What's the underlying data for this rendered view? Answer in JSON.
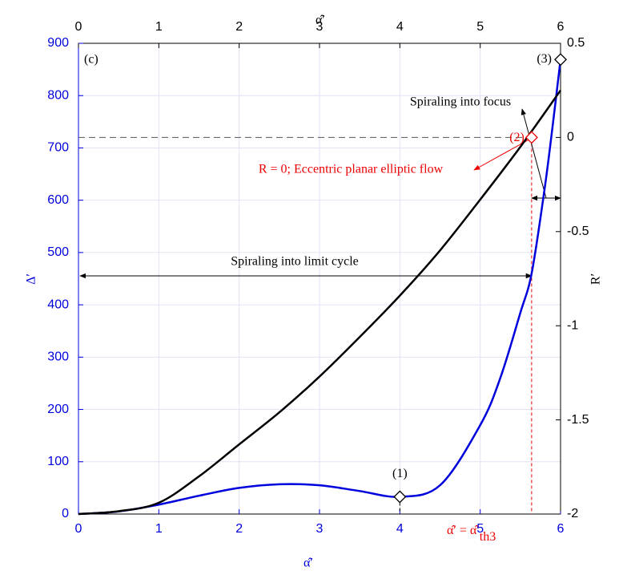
{
  "chart_data": {
    "type": "line",
    "xlabel": "α̂′",
    "x2label": "α̂′",
    "ylabel": "Δ′",
    "y2label": "R′",
    "panel_label": "(c)",
    "xlim": [
      0,
      6
    ],
    "xticks": [
      0,
      1,
      2,
      3,
      4,
      5,
      6
    ],
    "ylim": [
      0,
      900
    ],
    "yticks": [
      0,
      100,
      200,
      300,
      400,
      500,
      600,
      700,
      800,
      900
    ],
    "y2lim": [
      -2,
      0.5
    ],
    "y2ticks": [
      0.5,
      0,
      -0.5,
      -1,
      -1.5,
      -2
    ],
    "grid": true,
    "series": [
      {
        "color": "#0000dd",
        "x": [
          0,
          0.5,
          1,
          1.5,
          2,
          2.5,
          3,
          3.5,
          4,
          4.5,
          5,
          5.25,
          5.5,
          5.64,
          5.8,
          5.9,
          6
        ],
        "values": [
          0,
          5,
          18,
          35,
          50,
          57,
          55,
          44,
          33,
          55,
          170,
          260,
          385,
          460,
          620,
          740,
          869
        ]
      },
      {
        "color": "#000000",
        "axis": "y2",
        "x": [
          0,
          0.5,
          1,
          1.5,
          2,
          2.5,
          3,
          3.5,
          4,
          4.5,
          5,
          5.5,
          6
        ],
        "values": [
          -2,
          -1.985,
          -1.94,
          -1.8,
          -1.63,
          -1.46,
          -1.27,
          -1.06,
          -0.84,
          -0.6,
          -0.33,
          -0.05,
          0.25
        ]
      }
    ],
    "markers": [
      {
        "label": "(1)",
        "x": 4,
        "y": 33,
        "color": "#000000"
      },
      {
        "label": "(2)",
        "x": 5.64,
        "y": 0,
        "axis": "y2",
        "color": "#ee0000"
      },
      {
        "label": "(3)",
        "x": 6,
        "y": 869,
        "color": "#000000"
      }
    ],
    "annotations": [
      "Spiraling into focus",
      "R = 0; Eccentric planar elliptic flow",
      "Spiraling into limit cycle"
    ],
    "threshold_label": [
      "α̂′ = α̂′",
      "th3"
    ]
  }
}
